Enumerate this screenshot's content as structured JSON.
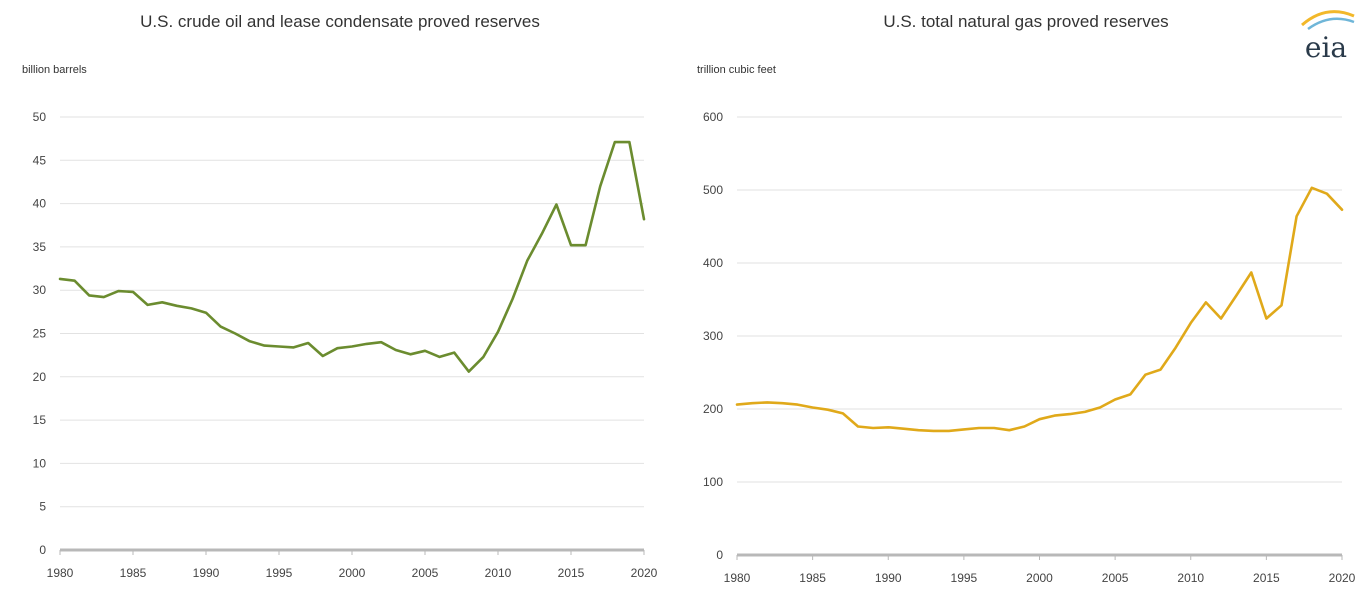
{
  "logo": {
    "text": "eia"
  },
  "colors": {
    "oil": "#6b8c2f",
    "gas": "#e0a91a",
    "logo_arc_1": "#f2b82a",
    "logo_arc_2": "#6fb6d8"
  },
  "chart_data": [
    {
      "type": "line",
      "title": "U.S. crude oil and lease condensate proved reserves",
      "ylabel": "billion barrels",
      "xlabel": "",
      "xlim": [
        1980,
        2020
      ],
      "ylim": [
        0,
        50
      ],
      "x_ticks": [
        1980,
        1985,
        1990,
        1995,
        2000,
        2005,
        2010,
        2015,
        2020
      ],
      "y_ticks": [
        0,
        5,
        10,
        15,
        20,
        25,
        30,
        35,
        40,
        45,
        50
      ],
      "grid": true,
      "x": [
        1980,
        1981,
        1982,
        1983,
        1984,
        1985,
        1986,
        1987,
        1988,
        1989,
        1990,
        1991,
        1992,
        1993,
        1994,
        1995,
        1996,
        1997,
        1998,
        1999,
        2000,
        2001,
        2002,
        2003,
        2004,
        2005,
        2006,
        2007,
        2008,
        2009,
        2010,
        2011,
        2012,
        2013,
        2014,
        2015,
        2016,
        2017,
        2018,
        2019,
        2020
      ],
      "series": [
        {
          "values": [
            31.3,
            31.1,
            29.4,
            29.2,
            29.9,
            29.8,
            28.3,
            28.6,
            28.2,
            27.9,
            27.4,
            25.8,
            25.0,
            24.1,
            23.6,
            23.5,
            23.4,
            23.9,
            22.4,
            23.3,
            23.5,
            23.8,
            24.0,
            23.1,
            22.6,
            23.0,
            22.3,
            22.8,
            20.6,
            22.3,
            25.2,
            29.0,
            33.4,
            36.5,
            39.9,
            35.2,
            35.2,
            42.0,
            47.1,
            47.1,
            38.2
          ]
        }
      ]
    },
    {
      "type": "line",
      "title": "U.S. total natural gas proved reserves",
      "ylabel": "trillion cubic feet",
      "xlabel": "",
      "xlim": [
        1980,
        2020
      ],
      "ylim": [
        0,
        600
      ],
      "x_ticks": [
        1980,
        1985,
        1990,
        1995,
        2000,
        2005,
        2010,
        2015,
        2020
      ],
      "y_ticks": [
        0,
        100,
        200,
        300,
        400,
        500,
        600
      ],
      "grid": true,
      "x": [
        1980,
        1981,
        1982,
        1983,
        1984,
        1985,
        1986,
        1987,
        1988,
        1989,
        1990,
        1991,
        1992,
        1993,
        1994,
        1995,
        1996,
        1997,
        1998,
        1999,
        2000,
        2001,
        2002,
        2003,
        2004,
        2005,
        2006,
        2007,
        2008,
        2009,
        2010,
        2011,
        2012,
        2013,
        2014,
        2015,
        2016,
        2017,
        2018,
        2019,
        2020
      ],
      "series": [
        {
          "values": [
            206,
            208,
            209,
            208,
            206,
            202,
            199,
            194,
            176,
            174,
            175,
            173,
            171,
            170,
            170,
            172,
            174,
            174,
            171,
            176,
            186,
            191,
            193,
            196,
            202,
            213,
            220,
            247,
            254,
            284,
            318,
            346,
            324,
            355,
            387,
            324,
            342,
            464,
            503,
            495,
            473
          ]
        }
      ]
    }
  ]
}
